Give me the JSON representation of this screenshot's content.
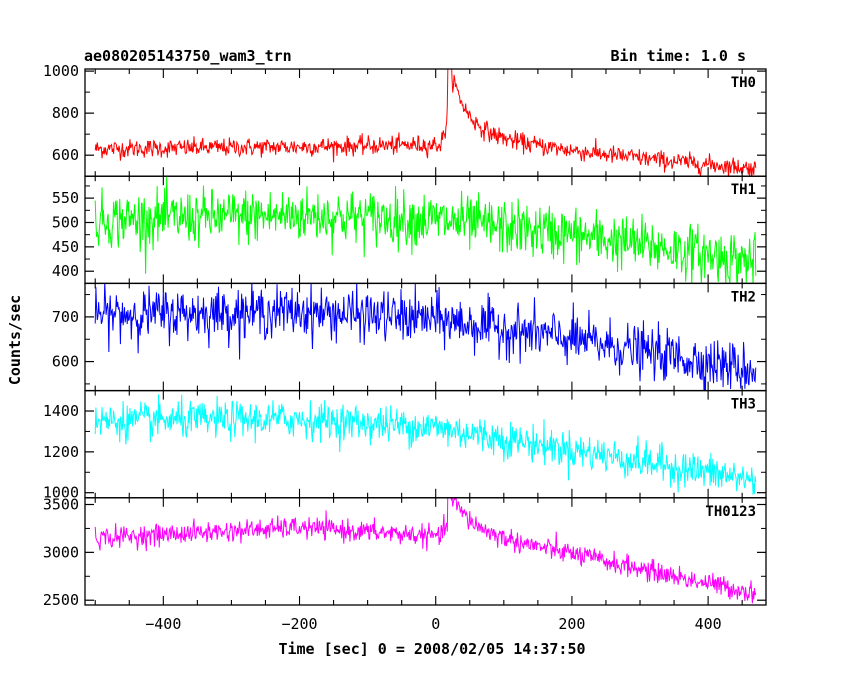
{
  "header": {
    "title": "ae080205143750_wam3_trn",
    "bin_time": "Bin time: 1.0 s"
  },
  "axes": {
    "xlabel": "Time [sec] 0 = 2008/02/05 14:37:50",
    "ylabel": "Counts/sec"
  },
  "chart_data": {
    "type": "line",
    "title": "ae080205143750_wam3_trn",
    "xlabel": "Time [sec] 0 = 2008/02/05 14:37:50",
    "ylabel": "Counts/sec",
    "xlim": [
      -515,
      485
    ],
    "x_ticks": [
      -400,
      -200,
      0,
      200,
      400
    ],
    "x_start": -500,
    "x_end": 470,
    "bin_time_s": 1.0,
    "series": [
      {
        "name": "TH0",
        "color": "#ff0000",
        "ylim": [
          500,
          1010
        ],
        "y_ticks": [
          600,
          800,
          1000
        ],
        "base": 620,
        "noise": 22,
        "trend": [
          [
            -500,
            630
          ],
          [
            -200,
            640
          ],
          [
            0,
            650
          ],
          [
            15,
            650
          ],
          [
            470,
            535
          ]
        ],
        "peak": {
          "x": 18,
          "height": 330,
          "rise_s": 4,
          "decay_s": 22
        },
        "tail_decay": {
          "amplitude": 90,
          "decay_s": 120
        }
      },
      {
        "name": "TH1",
        "color": "#00ff00",
        "ylim": [
          375,
          595
        ],
        "y_ticks": [
          400,
          450,
          500,
          550
        ],
        "noise": 28,
        "trend": [
          [
            -500,
            505
          ],
          [
            -200,
            515
          ],
          [
            0,
            505
          ],
          [
            200,
            475
          ],
          [
            470,
            420
          ]
        ]
      },
      {
        "name": "TH2",
        "color": "#0000ff",
        "ylim": [
          535,
          775
        ],
        "y_ticks": [
          600,
          700
        ],
        "noise": 28,
        "trend": [
          [
            -500,
            705
          ],
          [
            -200,
            712
          ],
          [
            0,
            695
          ],
          [
            200,
            650
          ],
          [
            470,
            580
          ]
        ]
      },
      {
        "name": "TH3",
        "color": "#00ffff",
        "ylim": [
          975,
          1500
        ],
        "y_ticks": [
          1000,
          1200,
          1400
        ],
        "noise": 45,
        "trend": [
          [
            -500,
            1350
          ],
          [
            -200,
            1360
          ],
          [
            0,
            1320
          ],
          [
            200,
            1210
          ],
          [
            470,
            1060
          ]
        ]
      },
      {
        "name": "TH0123",
        "color": "#ff00ff",
        "ylim": [
          2450,
          3570
        ],
        "y_ticks": [
          2500,
          3000,
          3500
        ],
        "noise": 55,
        "trend": [
          [
            -500,
            3150
          ],
          [
            -200,
            3260
          ],
          [
            0,
            3170
          ],
          [
            15,
            3170
          ],
          [
            200,
            2960
          ],
          [
            470,
            2570
          ]
        ],
        "peak": {
          "x": 18,
          "height": 360,
          "rise_s": 4,
          "decay_s": 28
        },
        "tail_decay": {
          "amplitude": 120,
          "decay_s": 120
        }
      }
    ]
  }
}
